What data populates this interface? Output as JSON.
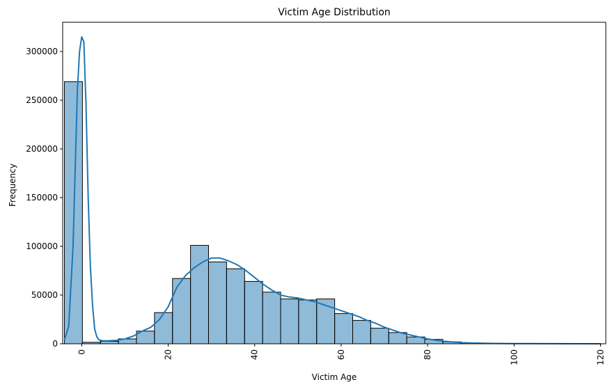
{
  "chart_data": {
    "type": "bar",
    "title": "Victim Age Distribution",
    "xlabel": "Victim Age",
    "ylabel": "Frequency",
    "xlim": [
      -4.4,
      121.2
    ],
    "ylim": [
      0,
      330000
    ],
    "xticks": [
      0,
      20,
      40,
      60,
      80,
      100,
      120
    ],
    "yticks": [
      0,
      50000,
      100000,
      150000,
      200000,
      250000,
      300000
    ],
    "xtick_rotation": 90,
    "grid": false,
    "bar_color": "#1f77b4",
    "bar_opacity": 0.5,
    "bar_edge_color": "#000000",
    "line_color": "#1f77b4",
    "histogram": {
      "bin_edges": [
        -4.0,
        0.167,
        4.333,
        8.5,
        12.667,
        16.833,
        21.0,
        25.167,
        29.333,
        33.5,
        37.667,
        41.833,
        46.0,
        50.167,
        54.333,
        58.5,
        62.667,
        66.833,
        71.0,
        75.167,
        79.333,
        83.5,
        87.667,
        91.833,
        96.0,
        100.167,
        104.333,
        108.5,
        112.667,
        116.833,
        121.0
      ],
      "counts": [
        269000,
        1500,
        2500,
        5000,
        13000,
        32000,
        67000,
        101000,
        84000,
        77000,
        64000,
        53000,
        46000,
        45000,
        46000,
        31000,
        24000,
        16000,
        11500,
        7000,
        4500,
        2000,
        800,
        400,
        200,
        100,
        50,
        20,
        10,
        5
      ]
    },
    "kde": {
      "x": [
        -4,
        -3,
        -2,
        -1.5,
        -1,
        -0.5,
        0,
        0.5,
        1,
        1.5,
        2,
        2.5,
        3,
        3.5,
        4,
        5,
        6,
        8,
        10,
        12,
        14,
        16,
        18,
        20,
        22,
        24,
        26,
        28,
        30,
        32,
        34,
        36,
        38,
        40,
        42,
        44,
        46,
        48,
        50,
        52,
        54,
        56,
        58,
        60,
        62,
        64,
        66,
        68,
        70,
        72,
        74,
        76,
        78,
        80,
        82,
        84,
        86,
        88,
        90,
        95,
        100,
        110,
        120
      ],
      "y": [
        4000,
        18000,
        100000,
        180000,
        260000,
        300000,
        315000,
        310000,
        245000,
        150000,
        80000,
        40000,
        15000,
        7000,
        4000,
        3000,
        3000,
        3500,
        5000,
        8000,
        13000,
        17000,
        25000,
        38000,
        58000,
        70000,
        78000,
        84000,
        88000,
        88000,
        85000,
        81000,
        75000,
        68000,
        61000,
        55000,
        50000,
        48000,
        47000,
        45000,
        43000,
        40000,
        37000,
        34000,
        31000,
        28000,
        24000,
        21000,
        17000,
        14000,
        11000,
        9000,
        7000,
        5000,
        3500,
        2500,
        1800,
        1200,
        800,
        400,
        200,
        60,
        20
      ]
    }
  }
}
